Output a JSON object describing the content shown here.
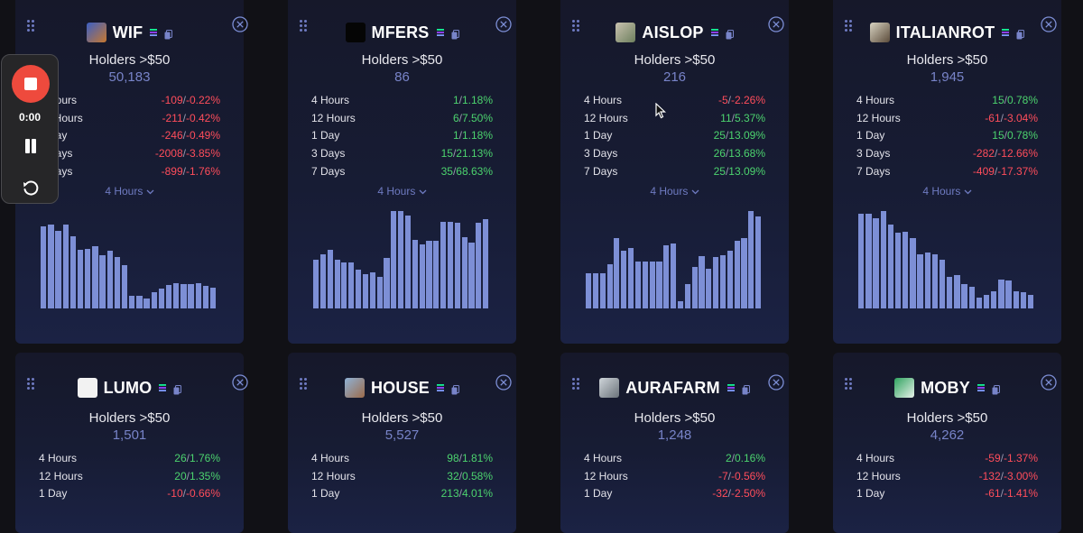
{
  "holders_label": "Holders >$50",
  "colors": {
    "positive": "#4cd36e",
    "negative": "#ff4d5b",
    "bar": "#7d8fd6",
    "accent": "#7884c9"
  },
  "recorder": {
    "time": "0:00"
  },
  "cards": [
    {
      "name": "WIF",
      "holders": "50,183",
      "icon": "wif-avatar",
      "stats": [
        {
          "label": "4 Hours",
          "d": "-109",
          "p": "-0.22%",
          "sign": "neg"
        },
        {
          "label": "12 Hours",
          "d": "-211",
          "p": "-0.42%",
          "sign": "neg"
        },
        {
          "label": "1 Day",
          "d": "-246",
          "p": "-0.49%",
          "sign": "neg"
        },
        {
          "label": "3 Days",
          "d": "-2008",
          "p": "-3.85%",
          "sign": "neg"
        },
        {
          "label": "7 Days",
          "d": "-899",
          "p": "-1.76%",
          "sign": "neg"
        }
      ],
      "period": "4 Hours",
      "bars": [
        0.84,
        0.86,
        0.8,
        0.86,
        0.74,
        0.6,
        0.61,
        0.64,
        0.55,
        0.59,
        0.53,
        0.44,
        0.13,
        0.13,
        0.1,
        0.17,
        0.2,
        0.24,
        0.26,
        0.25,
        0.25,
        0.26,
        0.23,
        0.21
      ]
    },
    {
      "name": "MFERS",
      "holders": "86",
      "icon": "mfers-avatar",
      "stats": [
        {
          "label": "4 Hours",
          "d": "1",
          "p": "1.18%",
          "sign": "pos"
        },
        {
          "label": "12 Hours",
          "d": "6",
          "p": "7.50%",
          "sign": "pos"
        },
        {
          "label": "1 Day",
          "d": "1",
          "p": "1.18%",
          "sign": "pos"
        },
        {
          "label": "3 Days",
          "d": "15",
          "p": "21.13%",
          "sign": "pos"
        },
        {
          "label": "7 Days",
          "d": "35",
          "p": "68.63%",
          "sign": "pos"
        }
      ],
      "period": "4 Hours",
      "bars": [
        0.5,
        0.56,
        0.6,
        0.5,
        0.47,
        0.47,
        0.4,
        0.35,
        0.37,
        0.32,
        0.52,
        1.0,
        1.0,
        0.95,
        0.7,
        0.66,
        0.69,
        0.69,
        0.89,
        0.89,
        0.88,
        0.73,
        0.68,
        0.88,
        0.92
      ]
    },
    {
      "name": "AISLOP",
      "holders": "216",
      "icon": "aislop-avatar",
      "stats": [
        {
          "label": "4 Hours",
          "d": "-5",
          "p": "-2.26%",
          "sign": "neg"
        },
        {
          "label": "12 Hours",
          "d": "11",
          "p": "5.37%",
          "sign": "pos"
        },
        {
          "label": "1 Day",
          "d": "25",
          "p": "13.09%",
          "sign": "pos"
        },
        {
          "label": "3 Days",
          "d": "26",
          "p": "13.68%",
          "sign": "pos"
        },
        {
          "label": "7 Days",
          "d": "25",
          "p": "13.09%",
          "sign": "pos"
        }
      ],
      "period": "4 Hours",
      "bars": [
        0.36,
        0.36,
        0.36,
        0.45,
        0.72,
        0.59,
        0.62,
        0.48,
        0.48,
        0.48,
        0.48,
        0.65,
        0.67,
        0.07,
        0.25,
        0.43,
        0.54,
        0.41,
        0.53,
        0.55,
        0.59,
        0.69,
        0.72,
        1.0,
        0.94
      ]
    },
    {
      "name": "ITALIANROT",
      "holders": "1,945",
      "icon": "italianrot-avatar",
      "stats": [
        {
          "label": "4 Hours",
          "d": "15",
          "p": "0.78%",
          "sign": "pos"
        },
        {
          "label": "12 Hours",
          "d": "-61",
          "p": "-3.04%",
          "sign": "neg"
        },
        {
          "label": "1 Day",
          "d": "15",
          "p": "0.78%",
          "sign": "pos"
        },
        {
          "label": "3 Days",
          "d": "-282",
          "p": "-12.66%",
          "sign": "neg"
        },
        {
          "label": "7 Days",
          "d": "-409",
          "p": "-17.37%",
          "sign": "neg"
        }
      ],
      "period": "4 Hours",
      "bars": [
        0.97,
        0.97,
        0.93,
        1.0,
        0.86,
        0.78,
        0.79,
        0.72,
        0.56,
        0.57,
        0.56,
        0.5,
        0.32,
        0.34,
        0.25,
        0.22,
        0.11,
        0.14,
        0.18,
        0.3,
        0.29,
        0.18,
        0.17,
        0.14
      ]
    },
    {
      "name": "LUMO",
      "holders": "1,501",
      "icon": "lumo-avatar",
      "stats": [
        {
          "label": "4 Hours",
          "d": "26",
          "p": "1.76%",
          "sign": "pos"
        },
        {
          "label": "12 Hours",
          "d": "20",
          "p": "1.35%",
          "sign": "pos"
        },
        {
          "label": "1 Day",
          "d": "-10",
          "p": "-0.66%",
          "sign": "neg"
        }
      ],
      "period": "",
      "bars": []
    },
    {
      "name": "HOUSE",
      "holders": "5,527",
      "icon": "house-avatar",
      "stats": [
        {
          "label": "4 Hours",
          "d": "98",
          "p": "1.81%",
          "sign": "pos"
        },
        {
          "label": "12 Hours",
          "d": "32",
          "p": "0.58%",
          "sign": "pos"
        },
        {
          "label": "1 Day",
          "d": "213",
          "p": "4.01%",
          "sign": "pos"
        }
      ],
      "period": "",
      "bars": []
    },
    {
      "name": "AURAFARM",
      "holders": "1,248",
      "icon": "aurafarm-avatar",
      "stats": [
        {
          "label": "4 Hours",
          "d": "2",
          "p": "0.16%",
          "sign": "pos"
        },
        {
          "label": "12 Hours",
          "d": "-7",
          "p": "-0.56%",
          "sign": "neg"
        },
        {
          "label": "1 Day",
          "d": "-32",
          "p": "-2.50%",
          "sign": "neg"
        }
      ],
      "period": "",
      "bars": []
    },
    {
      "name": "MOBY",
      "holders": "4,262",
      "icon": "moby-avatar",
      "stats": [
        {
          "label": "4 Hours",
          "d": "-59",
          "p": "-1.37%",
          "sign": "neg"
        },
        {
          "label": "12 Hours",
          "d": "-132",
          "p": "-3.00%",
          "sign": "neg"
        },
        {
          "label": "1 Day",
          "d": "-61",
          "p": "-1.41%",
          "sign": "neg"
        }
      ],
      "period": "",
      "bars": []
    }
  ]
}
